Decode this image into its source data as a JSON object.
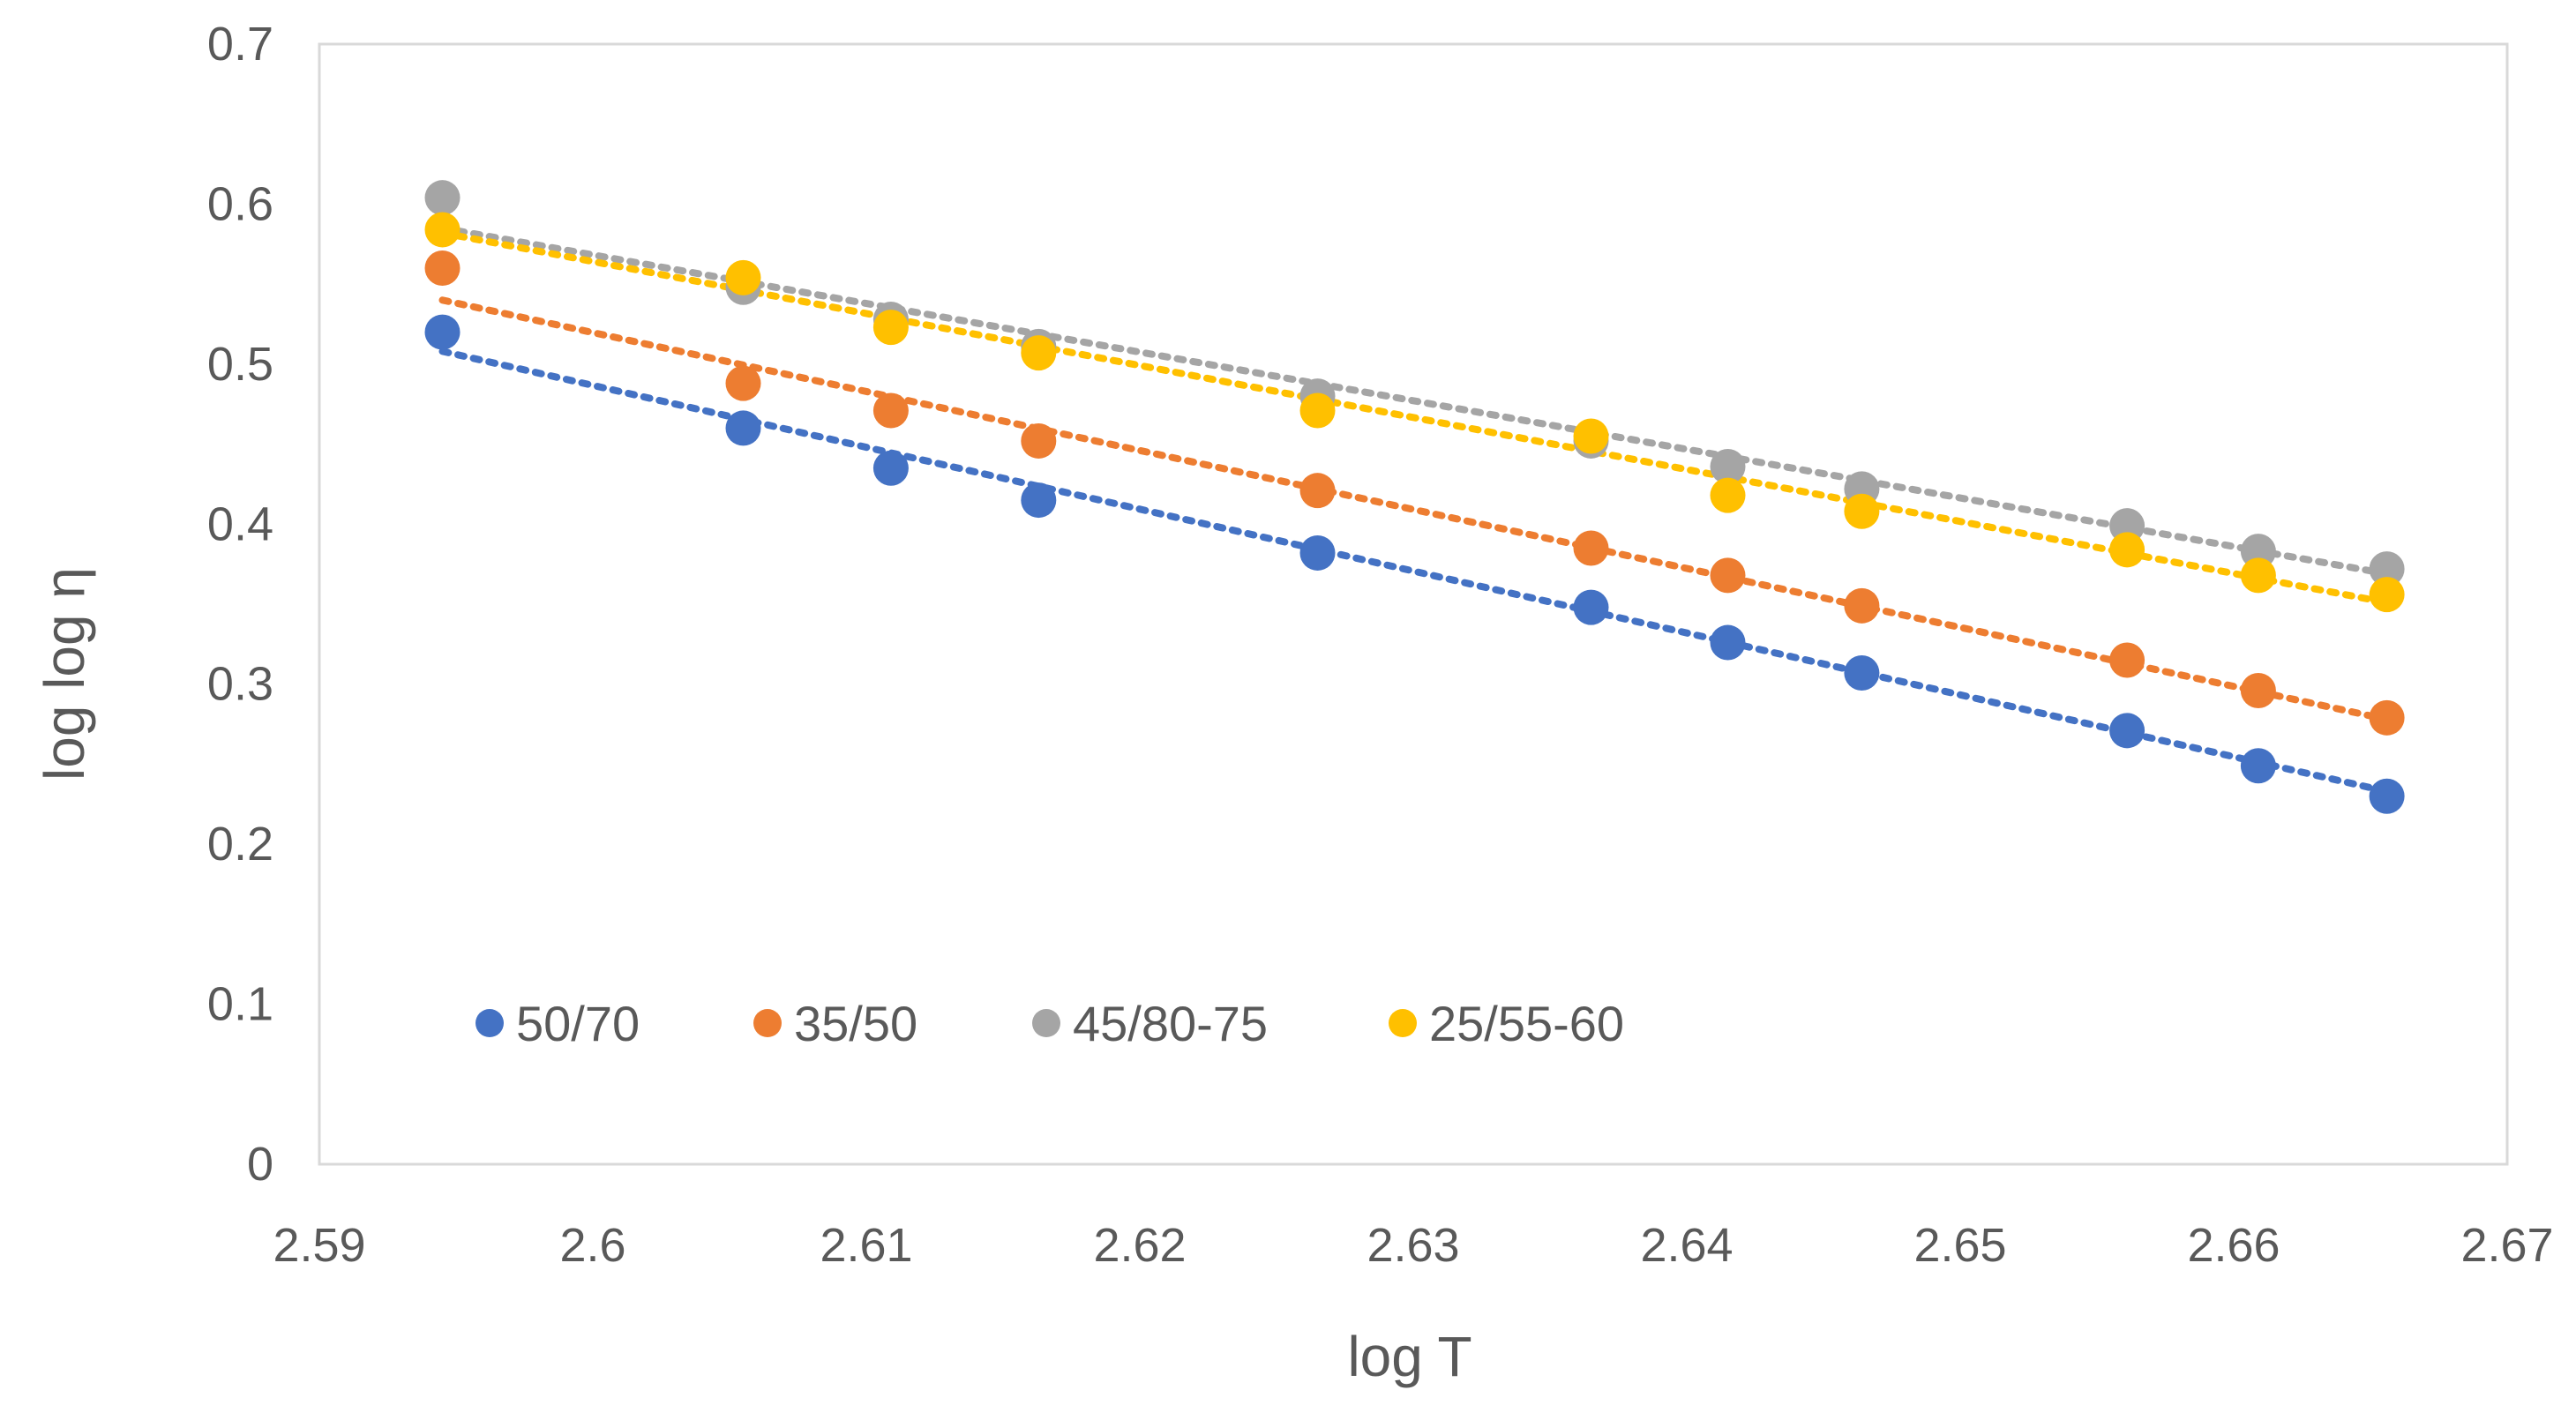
{
  "chart_data": {
    "type": "scatter",
    "title": "",
    "xlabel": "log T",
    "ylabel": "log log η",
    "xlim": [
      2.59,
      2.67
    ],
    "ylim": [
      0,
      0.7
    ],
    "xticks": [
      2.59,
      2.6,
      2.61,
      2.62,
      2.63,
      2.64,
      2.65,
      2.66,
      2.67
    ],
    "yticks": [
      0,
      0.1,
      0.2,
      0.3,
      0.4,
      0.5,
      0.6,
      0.7
    ],
    "xtick_labels": [
      "2.59",
      "2.6",
      "2.61",
      "2.62",
      "2.63",
      "2.64",
      "2.65",
      "2.66",
      "2.67"
    ],
    "ytick_labels": [
      "0",
      "0.1",
      "0.2",
      "0.3",
      "0.4",
      "0.5",
      "0.6",
      "0.7"
    ],
    "grid": false,
    "legend_position": "bottom-left inside",
    "x": [
      2.5945,
      2.6055,
      2.6109,
      2.6163,
      2.6265,
      2.6365,
      2.6415,
      2.6464,
      2.6561,
      2.6609,
      2.6656
    ],
    "series": [
      {
        "name": "50/70",
        "color": "#4472C4",
        "values": [
          0.52,
          0.46,
          0.435,
          0.415,
          0.382,
          0.348,
          0.326,
          0.307,
          0.271,
          0.249,
          0.23
        ],
        "trendline": [
          0.508,
          0.233
        ]
      },
      {
        "name": "35/50",
        "color": "#ED7D31",
        "values": [
          0.56,
          0.488,
          0.471,
          0.452,
          0.421,
          0.385,
          0.368,
          0.349,
          0.315,
          0.296,
          0.279
        ],
        "trendline": [
          0.54,
          0.278
        ]
      },
      {
        "name": "45/80-75",
        "color": "#A5A5A5",
        "values": [
          0.604,
          0.548,
          0.528,
          0.511,
          0.48,
          0.452,
          0.436,
          0.422,
          0.399,
          0.383,
          0.372
        ],
        "trendline": [
          0.585,
          0.369
        ]
      },
      {
        "name": "25/55-60",
        "color": "#FFC000",
        "values": [
          0.584,
          0.554,
          0.523,
          0.507,
          0.471,
          0.455,
          0.418,
          0.408,
          0.384,
          0.368,
          0.356
        ],
        "trendline": [
          0.582,
          0.351
        ]
      }
    ]
  }
}
